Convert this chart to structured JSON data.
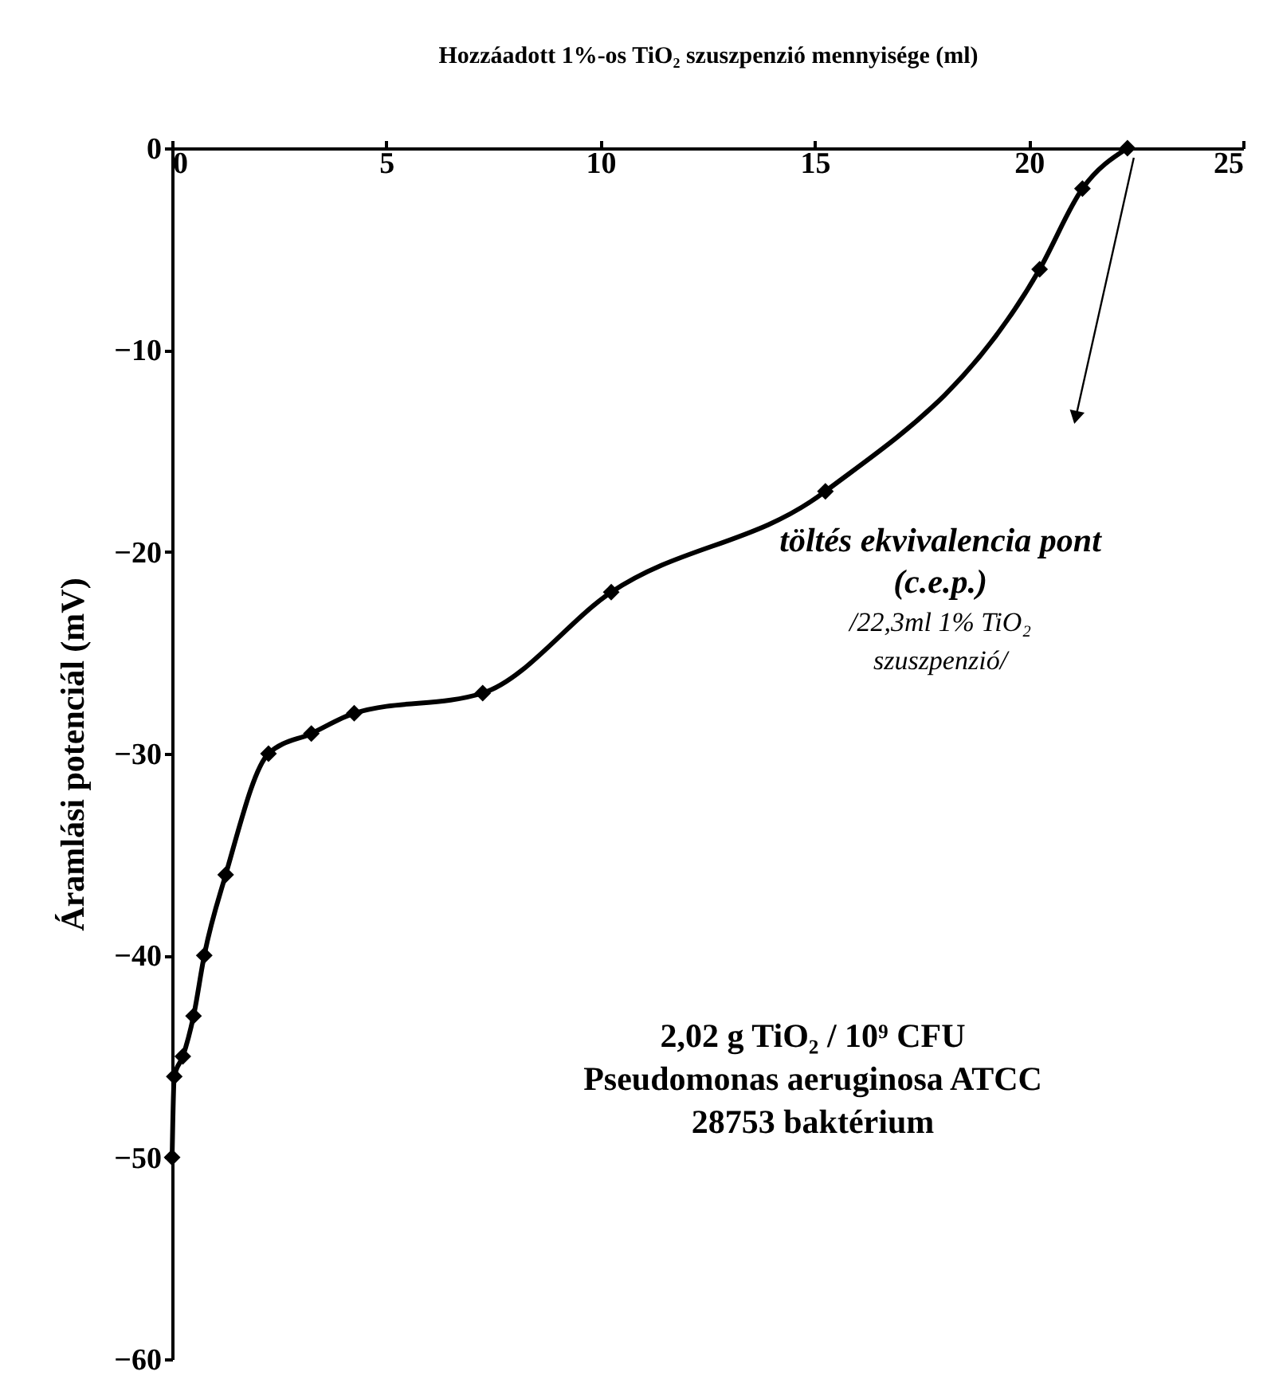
{
  "chart_data": {
    "type": "line",
    "xlabel": "Hozzáadott 1%-os TiO₂ szuszpenzió mennyisége (ml)",
    "ylabel": "Áramlási potenciál (mV)",
    "x": [
      0,
      0.05,
      0.25,
      0.5,
      0.75,
      1.25,
      2.25,
      3.25,
      4.25,
      7.25,
      10.25,
      15.25,
      20.25,
      21.25,
      22.3
    ],
    "series": [
      {
        "color": "#000000",
        "values": [
          -50,
          -46,
          -45,
          -43,
          -40,
          -36,
          -30,
          -29,
          -28,
          -27,
          -22,
          -17,
          -6,
          -2,
          0
        ]
      }
    ],
    "xlim": [
      0,
      25
    ],
    "xticks": [
      0,
      5,
      10,
      15,
      20,
      25
    ],
    "ylim": [
      -60,
      0
    ],
    "yticks": [
      -60,
      -50,
      -40,
      -30,
      -20,
      -10,
      0
    ],
    "marker": "diamond",
    "line_style": "solid",
    "grid": false,
    "annotations": [
      "töltés ekvivalencia pont\n(c.e.p.)\n/22,3ml 1% TiO₂\nszuszpenzió/",
      "2,02 g TiO₂ / 10⁹ CFU\nPseudomonas aeruginosa ATCC\n28753 baktérium"
    ]
  }
}
